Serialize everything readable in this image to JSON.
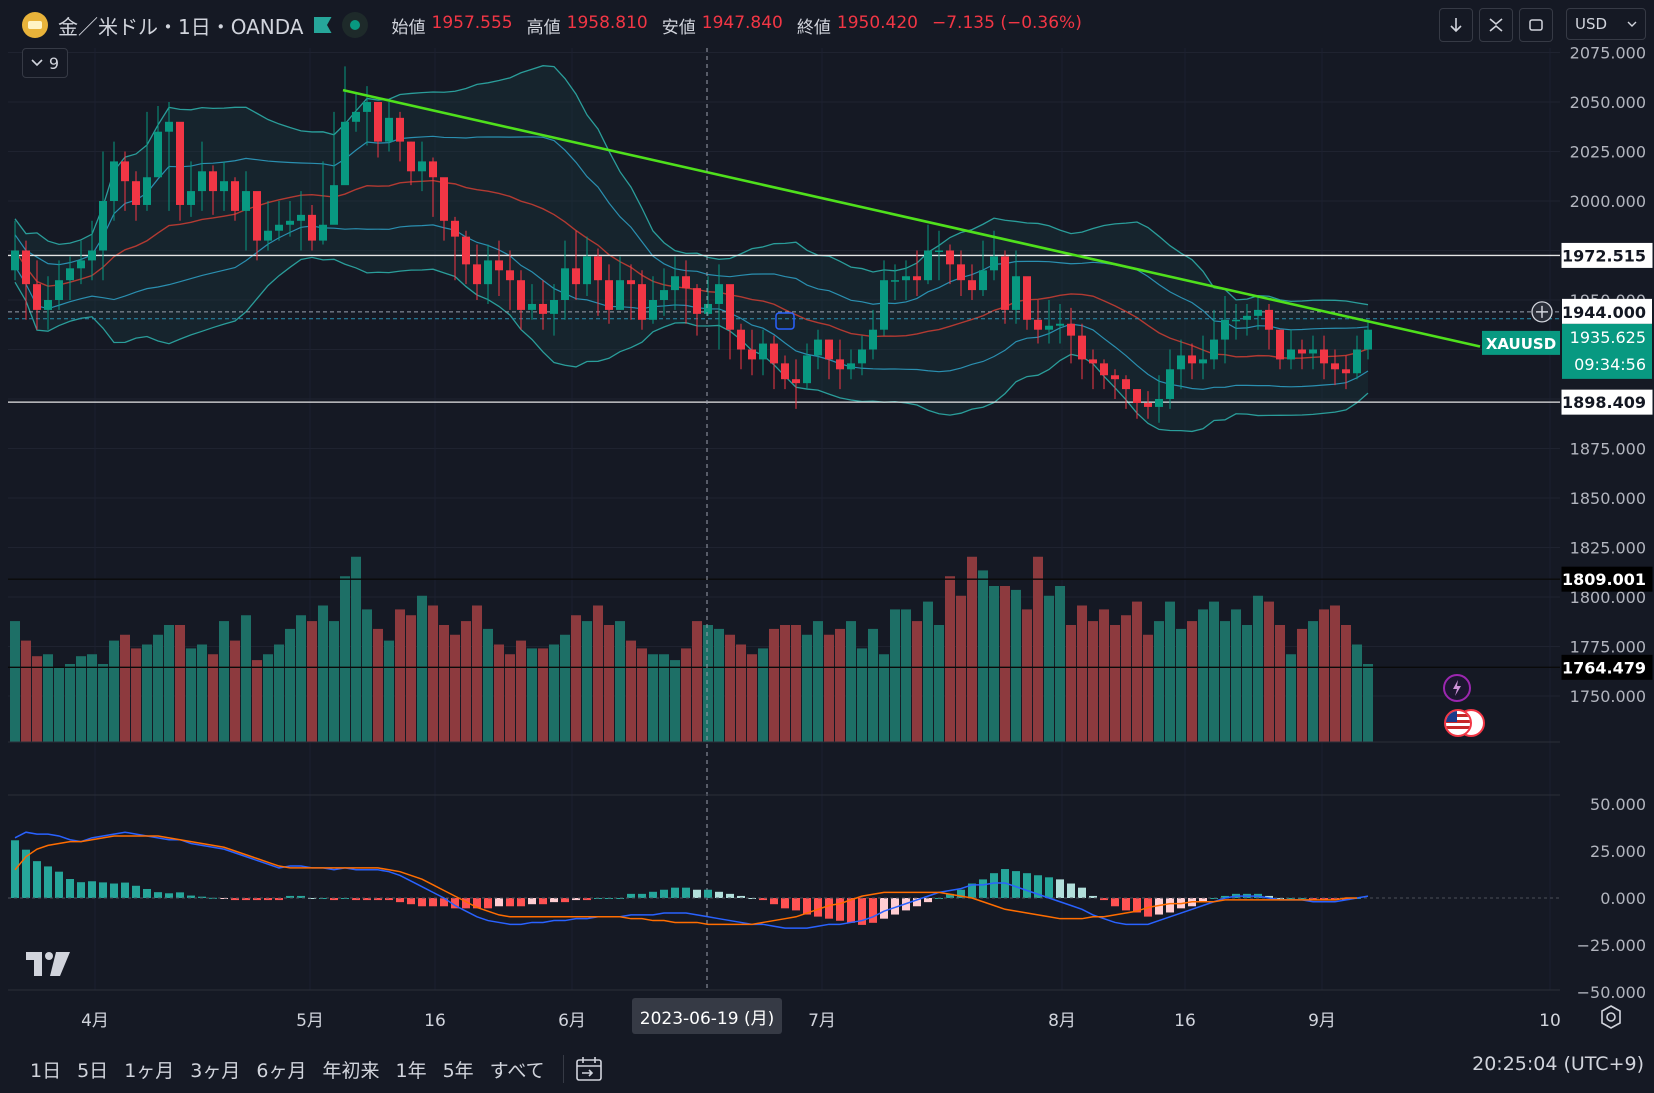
{
  "header": {
    "symbol_title": "金／米ドル・1日・OANDA",
    "ohlc": [
      {
        "label": "始値",
        "value": "1957.555"
      },
      {
        "label": "高値",
        "value": "1958.810"
      },
      {
        "label": "安値",
        "value": "1947.840"
      },
      {
        "label": "終値",
        "value": "1950.420"
      }
    ],
    "change": "−7.135 (−0.36%)",
    "indicators_count": "9",
    "currency": "USD"
  },
  "toolbar": {
    "icons": [
      "arrow-down-icon",
      "collapse-icon",
      "fullscreen-icon"
    ]
  },
  "price_axis": {
    "ticks": [
      "2075.000",
      "2050.000",
      "2025.000",
      "2000.000",
      "1975.000",
      "1950.000",
      "1925.000",
      "1900.000",
      "1875.000",
      "1850.000",
      "1825.000",
      "1800.000",
      "1775.000",
      "1750.000"
    ],
    "labels": [
      {
        "text": "1972.515",
        "value": 1972.515
      },
      {
        "text": "1944.000",
        "value": 1944.0
      },
      {
        "text": "1935.625",
        "value": 1935.625
      },
      {
        "text": "09:34:56",
        "value": 1926.5
      },
      {
        "text": "1898.409",
        "value": 1898.409
      },
      {
        "text": "1809.001",
        "value": 1809.001
      },
      {
        "text": "1764.479",
        "value": 1764.479
      }
    ],
    "symbol_tag": "XAUUSD"
  },
  "macd_axis": {
    "ticks": [
      "50.000",
      "25.000",
      "0.000",
      "−25.000",
      "−50.000"
    ]
  },
  "time_axis": {
    "labels": [
      "4月",
      "5月",
      "16",
      "6月",
      "7月",
      "8月",
      "16",
      "9月",
      "10"
    ],
    "crosshair_date": "2023-06-19 (月)"
  },
  "bottom_bar": {
    "ranges": [
      "1日",
      "5日",
      "1ヶ月",
      "3ヶ月",
      "6ヶ月",
      "年初来",
      "1年",
      "5年",
      "すべて"
    ],
    "clock": "20:25:04 (UTC+9)"
  },
  "colors": {
    "background": "#151924",
    "up": "#089981",
    "down": "#f23645",
    "trendline": "#4fe01c",
    "bb": "#2a9d9a",
    "ma_red": "#b23a32",
    "macd": "#2962ff",
    "signal": "#ff6d00"
  },
  "chart_data": [
    {
      "type": "candlestick",
      "x_range": [
        "2023-03-24",
        "2023-09-14"
      ],
      "close": [
        1975,
        1958,
        1945,
        1950,
        1960,
        1966,
        1970,
        1975,
        2000,
        2020,
        2010,
        1998,
        2012,
        2035,
        2040,
        1998,
        2005,
        2015,
        2005,
        2010,
        1995,
        2005,
        1980,
        1985,
        1988,
        1990,
        1993,
        1980,
        1988,
        2008,
        2040,
        2045,
        2050,
        2030,
        2042,
        2030,
        2015,
        2020,
        2012,
        1990,
        1982,
        1968,
        1958,
        1970,
        1965,
        1960,
        1945,
        1948,
        1943,
        1950,
        1966,
        1958,
        1972,
        1960,
        1945,
        1960,
        1958,
        1940,
        1950,
        1955,
        1962,
        1956,
        1943,
        1948,
        1958,
        1935,
        1925,
        1920,
        1928,
        1918,
        1910,
        1908,
        1922,
        1930,
        1920,
        1915,
        1918,
        1925,
        1935,
        1960,
        1960,
        1962,
        1960,
        1975,
        1975,
        1968,
        1960,
        1955,
        1965,
        1972,
        1945,
        1962,
        1940,
        1935,
        1937,
        1938,
        1932,
        1920,
        1918,
        1912,
        1910,
        1905,
        1898,
        1896,
        1900,
        1915,
        1922,
        1918,
        1920,
        1930,
        1940,
        1940,
        1942,
        1945,
        1935,
        1920,
        1925,
        1923,
        1925,
        1918,
        1915,
        1913,
        1925,
        1935
      ],
      "high": [
        1990,
        1980,
        1970,
        1962,
        1970,
        1972,
        1980,
        1990,
        2025,
        2030,
        2025,
        2015,
        2045,
        2048,
        2050,
        2020,
        2020,
        2030,
        2018,
        2020,
        2012,
        2015,
        2002,
        2000,
        2000,
        2000,
        2005,
        1998,
        2020,
        2045,
        2068,
        2055,
        2058,
        2050,
        2050,
        2045,
        2030,
        2030,
        2022,
        2010,
        1992,
        1985,
        1978,
        1978,
        1980,
        1975,
        1965,
        1958,
        1960,
        1958,
        1980,
        1985,
        1982,
        1976,
        1968,
        1972,
        1968,
        1965,
        1962,
        1966,
        1972,
        1970,
        1958,
        1962,
        1968,
        1950,
        1938,
        1935,
        1935,
        1932,
        1922,
        1920,
        1928,
        1935,
        1930,
        1930,
        1925,
        1932,
        1945,
        1970,
        1968,
        1970,
        1975,
        1988,
        1985,
        1978,
        1975,
        1968,
        1980,
        1985,
        1975,
        1975,
        1960,
        1950,
        1950,
        1948,
        1946,
        1938,
        1925,
        1920,
        1915,
        1912,
        1905,
        1904,
        1912,
        1925,
        1930,
        1928,
        1932,
        1945,
        1952,
        1948,
        1948,
        1952,
        1948,
        1935,
        1935,
        1930,
        1932,
        1932,
        1925,
        1922,
        1932,
        1940
      ],
      "low": [
        1960,
        1940,
        1935,
        1935,
        1945,
        1950,
        1958,
        1960,
        1960,
        1990,
        1995,
        1990,
        1995,
        2025,
        1995,
        1990,
        1992,
        1995,
        1993,
        1995,
        1990,
        1975,
        1970,
        1975,
        1980,
        1982,
        1975,
        1975,
        1978,
        1998,
        2010,
        2035,
        2028,
        2022,
        2025,
        2020,
        2008,
        2005,
        1992,
        1980,
        1960,
        1958,
        1950,
        1948,
        1952,
        1945,
        1935,
        1940,
        1935,
        1932,
        1940,
        1950,
        1952,
        1942,
        1938,
        1945,
        1940,
        1935,
        1938,
        1942,
        1945,
        1938,
        1932,
        1942,
        1925,
        1920,
        1915,
        1912,
        1912,
        1905,
        1905,
        1895,
        1905,
        1915,
        1910,
        1905,
        1910,
        1912,
        1920,
        1932,
        1950,
        1950,
        1952,
        1958,
        1960,
        1958,
        1952,
        1950,
        1952,
        1960,
        1938,
        1938,
        1935,
        1928,
        1928,
        1928,
        1918,
        1910,
        1905,
        1905,
        1900,
        1895,
        1890,
        1890,
        1888,
        1895,
        1905,
        1910,
        1910,
        1915,
        1918,
        1930,
        1932,
        1935,
        1925,
        1915,
        1915,
        1915,
        1915,
        1910,
        1907,
        1905,
        1910,
        1920
      ],
      "trendline": {
        "from": [
          "2023-05-04",
          2056
        ],
        "to": [
          "2023-09-14",
          1929
        ]
      },
      "horizontal_lines": [
        1972.515,
        1898.409,
        1809.001,
        1764.479
      ],
      "dashed_lines": [
        1944.0,
        1940.5
      ],
      "volume": [
        62,
        52,
        44,
        45,
        38,
        40,
        44,
        45,
        40,
        52,
        55,
        48,
        50,
        55,
        60,
        60,
        48,
        50,
        45,
        62,
        52,
        65,
        42,
        45,
        50,
        58,
        65,
        62,
        70,
        62,
        85,
        95,
        68,
        58,
        52,
        68,
        65,
        75,
        70,
        60,
        55,
        62,
        70,
        58,
        50,
        45,
        52,
        48,
        48,
        50,
        55,
        65,
        62,
        70,
        60,
        62,
        52,
        48,
        45,
        45,
        42,
        48,
        62,
        60,
        58,
        55,
        50,
        45,
        48,
        58,
        60,
        60,
        55,
        62,
        55,
        58,
        62,
        48,
        58,
        45,
        68,
        68,
        62,
        72,
        60,
        85,
        75,
        95,
        88,
        80,
        80,
        78,
        68,
        95,
        75,
        80,
        60,
        70,
        62,
        68,
        60,
        65,
        72,
        55,
        62,
        72,
        58,
        62,
        68,
        72,
        62,
        68,
        60,
        75,
        72,
        60,
        45,
        58,
        62,
        68,
        70,
        60,
        50,
        40
      ],
      "macd": {
        "y_range": [
          -50,
          50
        ],
        "macd": [
          32,
          35,
          34,
          34,
          33,
          31,
          30,
          32,
          33,
          34,
          35,
          34,
          33,
          32,
          31,
          31,
          29,
          28,
          27,
          26,
          24,
          22,
          20,
          18,
          16,
          17,
          17,
          16,
          16,
          15,
          16,
          15,
          15,
          15,
          14,
          12,
          9,
          6,
          3,
          0,
          -4,
          -7,
          -10,
          -12,
          -13,
          -14,
          -14,
          -13,
          -13,
          -12,
          -12,
          -11,
          -11,
          -10,
          -10,
          -10,
          -9,
          -9,
          -9,
          -8,
          -8,
          -8,
          -9,
          -10,
          -11,
          -12,
          -13,
          -14,
          -14,
          -15,
          -16,
          -16,
          -16,
          -15,
          -14,
          -14,
          -13,
          -12,
          -10,
          -7,
          -5,
          -3,
          -1,
          1,
          3,
          4,
          5,
          7,
          7,
          8,
          8,
          6,
          4,
          2,
          0,
          -2,
          -4,
          -6,
          -9,
          -11,
          -13,
          -14,
          -14,
          -14,
          -12,
          -10,
          -8,
          -6,
          -4,
          -2,
          0,
          1,
          1,
          1,
          0,
          -1,
          -1,
          -1,
          -2,
          -2,
          -2,
          -1,
          0,
          1
        ],
        "signal": [
          15,
          22,
          26,
          28,
          29,
          30,
          30,
          31,
          32,
          33,
          33,
          33,
          33,
          33,
          32,
          31,
          30,
          29,
          28,
          27,
          25,
          23,
          21,
          19,
          17,
          16,
          16,
          16,
          16,
          16,
          16,
          16,
          16,
          16,
          15,
          14,
          12,
          10,
          7,
          4,
          1,
          -2,
          -5,
          -7,
          -9,
          -10,
          -10,
          -10,
          -10,
          -10,
          -10,
          -10,
          -10,
          -10,
          -10,
          -10,
          -11,
          -11,
          -12,
          -12,
          -13,
          -13,
          -13,
          -14,
          -14,
          -14,
          -14,
          -14,
          -13,
          -12,
          -11,
          -10,
          -8,
          -6,
          -4,
          -3,
          -1,
          1,
          2,
          3,
          3,
          3,
          3,
          3,
          3,
          2,
          1,
          0,
          -2,
          -4,
          -6,
          -7,
          -8,
          -9,
          -10,
          -11,
          -11,
          -11,
          -10,
          -10,
          -9,
          -8,
          -7,
          -5,
          -4,
          -3,
          -3,
          -2,
          -2,
          -2,
          -1,
          -1,
          -1,
          -1,
          -1,
          -1,
          -1,
          -1,
          -1,
          -1,
          -1,
          0,
          0
        ]
      }
    }
  ]
}
